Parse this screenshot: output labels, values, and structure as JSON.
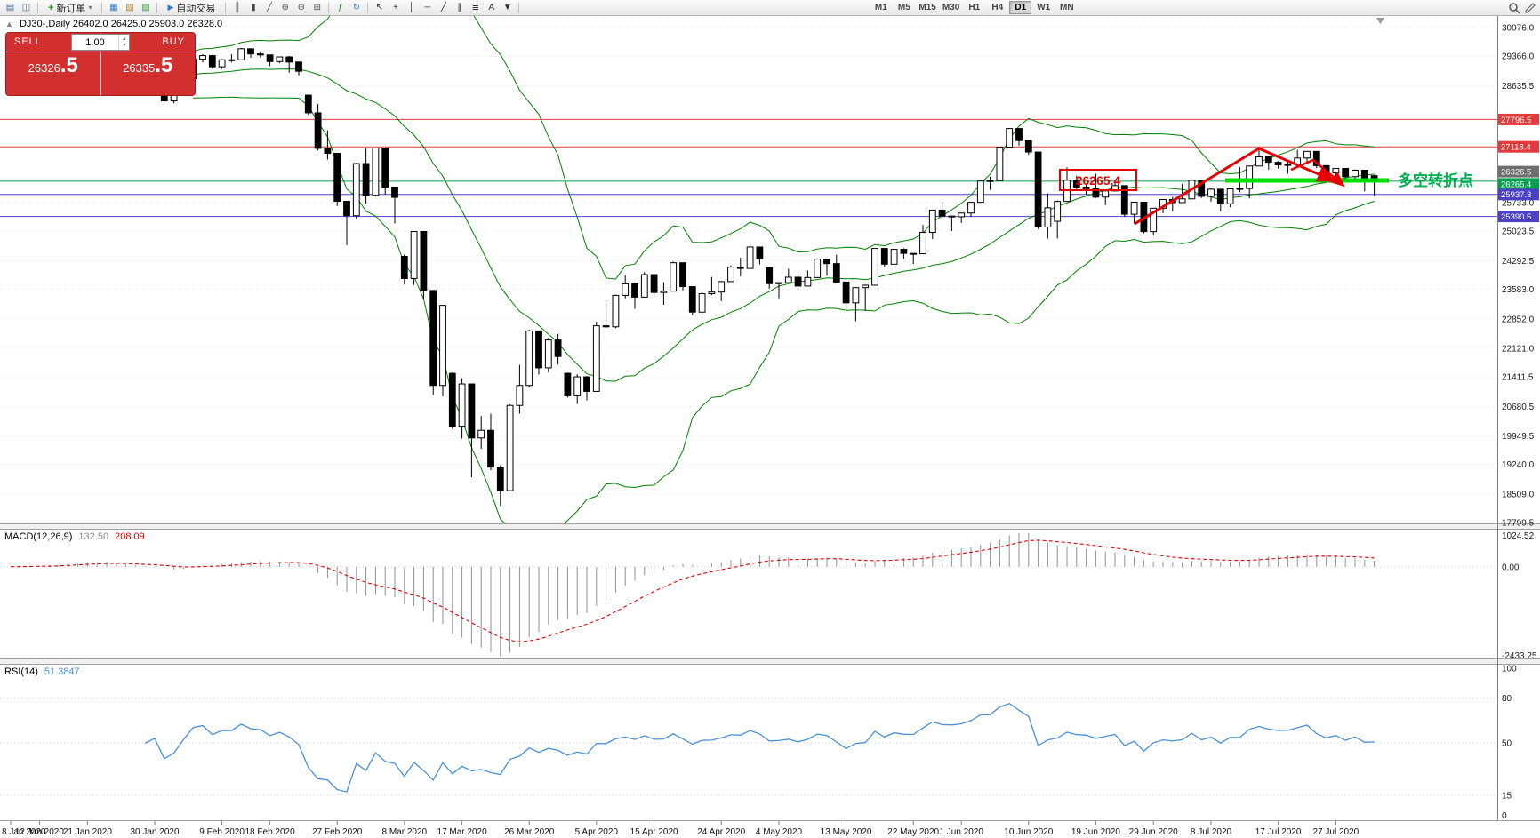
{
  "window": {
    "symbol_ohlc_line": "DJ30-,Daily  26402.0 26425.0 25903.0 26328.0"
  },
  "toolbar": {
    "new_order_label": "新订单",
    "auto_trading_label": "自动交易",
    "timeframes": [
      "M1",
      "M5",
      "M15",
      "M30",
      "H1",
      "H4",
      "D1",
      "W1",
      "MN"
    ],
    "active_timeframe": "D1",
    "icons": [
      {
        "name": "new-chart-icon",
        "glyph": "▤",
        "color": "#4a6f9c"
      },
      {
        "name": "chart-profiles-icon",
        "glyph": "◫",
        "color": "#4a6f9c"
      },
      {
        "name": "market-watch-icon",
        "glyph": "▦",
        "color": "#2e7dd1"
      },
      {
        "name": "data-window-icon",
        "glyph": "▧",
        "color": "#b28a2e"
      },
      {
        "name": "navigator-icon",
        "glyph": "▨",
        "color": "#3a9a3a"
      },
      {
        "name": "bars-chart-icon",
        "glyph": "║",
        "color": "#444444"
      },
      {
        "name": "candles-chart-icon",
        "glyph": "▮",
        "color": "#444444"
      },
      {
        "name": "line-chart-icon",
        "glyph": "╱",
        "color": "#444444"
      },
      {
        "name": "zoom-in-icon",
        "glyph": "⊕",
        "color": "#444444"
      },
      {
        "name": "zoom-out-icon",
        "glyph": "⊖",
        "color": "#444444"
      },
      {
        "name": "tile-windows-icon",
        "glyph": "⊞",
        "color": "#444444"
      },
      {
        "name": "add-indicator-icon",
        "glyph": "ƒ",
        "color": "#1a8a1a"
      },
      {
        "name": "period-menu-icon",
        "glyph": "↻",
        "color": "#2e7dd1"
      },
      {
        "name": "cursor-icon",
        "glyph": "↖",
        "color": "#333333"
      },
      {
        "name": "crosshair-icon",
        "glyph": "+",
        "color": "#333333"
      },
      {
        "name": "vertical-line-icon",
        "glyph": "│",
        "color": "#333333"
      },
      {
        "name": "horizontal-line-icon",
        "glyph": "─",
        "color": "#333333"
      },
      {
        "name": "trendline-icon",
        "glyph": "╱",
        "color": "#333333"
      },
      {
        "name": "equidistant-channel-icon",
        "glyph": "∥",
        "color": "#333333"
      },
      {
        "name": "fibonacci-icon",
        "glyph": "≣",
        "color": "#333333"
      },
      {
        "name": "text-label-icon",
        "glyph": "A",
        "color": "#333333"
      },
      {
        "name": "arrows-tool-icon",
        "glyph": "▼",
        "color": "#333333"
      }
    ]
  },
  "trade_panel": {
    "sell_label": "SELL",
    "buy_label": "BUY",
    "volume": "1.00",
    "sell_price_int": "26326",
    "sell_price_frac": ".5",
    "buy_price_int": "26335",
    "buy_price_frac": ".5",
    "panel_color": "#d22f2f"
  },
  "chart_data": {
    "type": "candlestick",
    "symbol": "DJ30-",
    "timeframe": "Daily",
    "ohlc_header": {
      "open": 26402.0,
      "high": 26425.0,
      "low": 25903.0,
      "close": 26328.0
    },
    "y_axis_labels": [
      "30076.0",
      "29366.0",
      "28635.5",
      "25733.0",
      "25023.5",
      "24292.5",
      "23583.0",
      "22852.0",
      "22121.0",
      "21411.5",
      "20680.5",
      "19949.5",
      "19240.0",
      "18509.0",
      "17799.5"
    ],
    "x_labels": [
      {
        "t": "8 Jan 2020",
        "i": 0
      },
      {
        "t": "12 Jan 2020",
        "i": 3
      },
      {
        "t": "21 Jan 2020",
        "i": 8
      },
      {
        "t": "30 Jan 2020",
        "i": 15
      },
      {
        "t": "9 Feb 2020",
        "i": 22
      },
      {
        "t": "18 Feb 2020",
        "i": 27
      },
      {
        "t": "27 Feb 2020",
        "i": 34
      },
      {
        "t": "8 Mar 2020",
        "i": 41
      },
      {
        "t": "17 Mar 2020",
        "i": 47
      },
      {
        "t": "26 Mar 2020",
        "i": 54
      },
      {
        "t": "5 Apr 2020",
        "i": 61
      },
      {
        "t": "15 Apr 2020",
        "i": 67
      },
      {
        "t": "24 Apr 2020",
        "i": 74
      },
      {
        "t": "4 May 2020",
        "i": 80
      },
      {
        "t": "13 May 2020",
        "i": 87
      },
      {
        "t": "22 May 2020",
        "i": 94
      },
      {
        "t": "1 Jun 2020",
        "i": 99
      },
      {
        "t": "10 Jun 2020",
        "i": 106
      },
      {
        "t": "19 Jun 2020",
        "i": 113
      },
      {
        "t": "29 Jun 2020",
        "i": 119
      },
      {
        "t": "8 Jul 2020",
        "i": 125
      },
      {
        "t": "17 Jul 2020",
        "i": 132
      },
      {
        "t": "27 Jul 2020",
        "i": 138
      }
    ],
    "hlines": [
      {
        "price": 27796.5,
        "label": "27796.5",
        "color": "#e23b3b"
      },
      {
        "price": 27118.4,
        "label": "27118.4",
        "color": "#e23b3b"
      },
      {
        "price": 26265.4,
        "label": "26265.4",
        "color": "#00a050"
      },
      {
        "price": 25937.3,
        "label": "25937.3",
        "color": "#4b41c9"
      },
      {
        "price": 25390.5,
        "label": "25390.5",
        "color": "#4b41c9"
      }
    ],
    "bid_label": {
      "price": 26326.5,
      "label": "26326.5",
      "color": "#6e6e6e"
    },
    "bollinger": {
      "period": 20,
      "deviation": 2,
      "color": "#008000"
    },
    "macd": {
      "name": "MACD(12,26,9)",
      "value_main": "132.50",
      "value_signal": "208.09",
      "axis_labels": [
        "1024.52",
        "0.00",
        "-2433.25"
      ],
      "histogram_color": "#909090",
      "signal_color": "#e00000"
    },
    "rsi": {
      "name": "RSI(14)",
      "value": "51.3847",
      "axis_labels": [
        "100",
        "80",
        "50",
        "15",
        "0"
      ],
      "levels": [
        80,
        50,
        15
      ],
      "color": "#4a90d9"
    },
    "annotations": {
      "price_box": {
        "text": "26265.4",
        "color": "#e60000"
      },
      "turning_point_text": {
        "text": "多空转折点",
        "color": "#00b050"
      },
      "highlight_line_color": "#00dd00",
      "trend_color": "#e60000"
    },
    "candles": [
      [
        28500,
        28765,
        28420,
        28745
      ],
      [
        28745,
        28990,
        28720,
        28957
      ],
      [
        28957,
        29010,
        28780,
        28824
      ],
      [
        28824,
        28920,
        28760,
        28907
      ],
      [
        28907,
        28985,
        28830,
        28939
      ],
      [
        28939,
        29085,
        28890,
        29030
      ],
      [
        29030,
        29300,
        29010,
        29297
      ],
      [
        29297,
        29389,
        29250,
        29348
      ],
      [
        29348,
        29360,
        29120,
        29196
      ],
      [
        29196,
        29320,
        29150,
        29186
      ],
      [
        29186,
        29230,
        28995,
        29160
      ],
      [
        29160,
        29290,
        28910,
        28990
      ],
      [
        28650,
        28700,
        28440,
        28536
      ],
      [
        28536,
        28750,
        28500,
        28723
      ],
      [
        28723,
        28820,
        28650,
        28734
      ],
      [
        28734,
        28870,
        28520,
        28859
      ],
      [
        28859,
        28870,
        28250,
        28256
      ],
      [
        28256,
        28480,
        28200,
        28400
      ],
      [
        28400,
        28850,
        28390,
        28808
      ],
      [
        28808,
        29310,
        28800,
        29291
      ],
      [
        29291,
        29409,
        29210,
        29380
      ],
      [
        29380,
        29390,
        29056,
        29103
      ],
      [
        29103,
        29300,
        29050,
        29277
      ],
      [
        29277,
        29415,
        29210,
        29276
      ],
      [
        29276,
        29568,
        29270,
        29551
      ],
      [
        29551,
        29560,
        29330,
        29423
      ],
      [
        29423,
        29480,
        29330,
        29398
      ],
      [
        29398,
        29400,
        29120,
        29232
      ],
      [
        29232,
        29360,
        29200,
        29348
      ],
      [
        29348,
        29370,
        28960,
        29220
      ],
      [
        29220,
        29230,
        28890,
        28992
      ],
      [
        28400,
        28410,
        27910,
        27961
      ],
      [
        27961,
        28180,
        27030,
        27081
      ],
      [
        27081,
        27530,
        26800,
        26958
      ],
      [
        26958,
        26960,
        25650,
        25767
      ],
      [
        25767,
        25780,
        24680,
        25409
      ],
      [
        25409,
        26720,
        25320,
        26703
      ],
      [
        26703,
        27080,
        25710,
        25917
      ],
      [
        25917,
        27100,
        25890,
        27090
      ],
      [
        27090,
        27100,
        25940,
        26121
      ],
      [
        26121,
        26130,
        25220,
        25865
      ],
      [
        24400,
        24450,
        23700,
        23851
      ],
      [
        23851,
        25030,
        23690,
        25018
      ],
      [
        25018,
        25030,
        23330,
        23553
      ],
      [
        23553,
        23570,
        20960,
        21200
      ],
      [
        21200,
        23200,
        20930,
        23185
      ],
      [
        21500,
        21520,
        20120,
        20188
      ],
      [
        20188,
        21380,
        19880,
        21237
      ],
      [
        21237,
        21240,
        18920,
        19898
      ],
      [
        19898,
        20440,
        19630,
        20087
      ],
      [
        20087,
        20500,
        19100,
        19173
      ],
      [
        19173,
        19220,
        18213,
        18591
      ],
      [
        18591,
        20730,
        18590,
        20704
      ],
      [
        20704,
        21710,
        20500,
        21200
      ],
      [
        21200,
        22580,
        21150,
        22552
      ],
      [
        22552,
        22560,
        21470,
        21636
      ],
      [
        21636,
        22380,
        21520,
        22327
      ],
      [
        22327,
        22480,
        21720,
        21917
      ],
      [
        21500,
        21520,
        20900,
        20943
      ],
      [
        20943,
        21480,
        20740,
        21413
      ],
      [
        21413,
        21430,
        20830,
        21052
      ],
      [
        21052,
        22780,
        21050,
        22679
      ],
      [
        22679,
        23310,
        22635,
        22653
      ],
      [
        22653,
        23450,
        22620,
        23433
      ],
      [
        23433,
        23930,
        23360,
        23719
      ],
      [
        23719,
        23730,
        23100,
        23390
      ],
      [
        23390,
        24010,
        23380,
        23949
      ],
      [
        23949,
        23960,
        23390,
        23504
      ],
      [
        23504,
        23760,
        23200,
        23537
      ],
      [
        23537,
        24270,
        23530,
        24242
      ],
      [
        24242,
        24250,
        23560,
        23650
      ],
      [
        23650,
        23660,
        22940,
        23018
      ],
      [
        23018,
        23520,
        22950,
        23475
      ],
      [
        23475,
        23890,
        23440,
        23515
      ],
      [
        23515,
        23790,
        23290,
        23775
      ],
      [
        23775,
        24180,
        23770,
        24133
      ],
      [
        24133,
        24370,
        23900,
        24101
      ],
      [
        24101,
        24765,
        24100,
        24633
      ],
      [
        24633,
        24640,
        24200,
        24345
      ],
      [
        24120,
        24130,
        23600,
        23723
      ],
      [
        23723,
        23760,
        23360,
        23749
      ],
      [
        23749,
        24090,
        23740,
        23883
      ],
      [
        23883,
        23980,
        23570,
        23664
      ],
      [
        23664,
        24050,
        23660,
        23875
      ],
      [
        23875,
        24350,
        23870,
        24331
      ],
      [
        24331,
        24340,
        23920,
        24221
      ],
      [
        24221,
        24440,
        23750,
        23764
      ],
      [
        23764,
        23770,
        23070,
        23247
      ],
      [
        23247,
        23630,
        22790,
        23625
      ],
      [
        23625,
        23700,
        23050,
        23685
      ],
      [
        23685,
        24600,
        23680,
        24597
      ],
      [
        24597,
        24600,
        24140,
        24206
      ],
      [
        24206,
        24580,
        24200,
        24575
      ],
      [
        24575,
        24600,
        24340,
        24474
      ],
      [
        24474,
        24480,
        24210,
        24465
      ],
      [
        24465,
        25180,
        24460,
        24995
      ],
      [
        24995,
        25560,
        24830,
        25548
      ],
      [
        25548,
        25760,
        25330,
        25400
      ],
      [
        25400,
        25410,
        25030,
        25383
      ],
      [
        25383,
        25480,
        25230,
        25475
      ],
      [
        25475,
        25745,
        25380,
        25742
      ],
      [
        25742,
        26290,
        25740,
        26269
      ],
      [
        26269,
        26380,
        26050,
        26281
      ],
      [
        26281,
        27110,
        26280,
        27110
      ],
      [
        27110,
        27580,
        27090,
        27572
      ],
      [
        27572,
        27580,
        27150,
        27272
      ],
      [
        27272,
        27280,
        26920,
        26989
      ],
      [
        26989,
        26990,
        25080,
        25128
      ],
      [
        25128,
        25965,
        24840,
        25605
      ],
      [
        25270,
        25790,
        24843,
        25763
      ],
      [
        25763,
        26610,
        25760,
        26289
      ],
      [
        26289,
        26400,
        26070,
        26119
      ],
      [
        26119,
        26210,
        25920,
        26080
      ],
      [
        26080,
        26450,
        25850,
        25871
      ],
      [
        25871,
        26060,
        25670,
        26024
      ],
      [
        26024,
        26300,
        26010,
        26156
      ],
      [
        26156,
        26160,
        25380,
        25445
      ],
      [
        25445,
        25750,
        25210,
        25745
      ],
      [
        25745,
        25750,
        24970,
        25015
      ],
      [
        25015,
        25600,
        24920,
        25595
      ],
      [
        25595,
        25820,
        25470,
        25812
      ],
      [
        25812,
        25880,
        25520,
        25734
      ],
      [
        25734,
        26200,
        25730,
        25827
      ],
      [
        25827,
        26300,
        25820,
        26287
      ],
      [
        26287,
        26290,
        25850,
        25890
      ],
      [
        25890,
        26090,
        25760,
        26067
      ],
      [
        26067,
        26070,
        25520,
        25706
      ],
      [
        25706,
        26080,
        25620,
        26075
      ],
      [
        26075,
        26620,
        25990,
        26085
      ],
      [
        26085,
        26650,
        25840,
        26642
      ],
      [
        26642,
        27070,
        26640,
        26870
      ],
      [
        26870,
        26880,
        26550,
        26734
      ],
      [
        26734,
        26770,
        26580,
        26671
      ],
      [
        26671,
        26760,
        26450,
        26680
      ],
      [
        26680,
        27040,
        26670,
        26840
      ],
      [
        26840,
        27010,
        26700,
        27005
      ],
      [
        27005,
        27010,
        26590,
        26652
      ],
      [
        26652,
        26660,
        26310,
        26469
      ],
      [
        26469,
        26590,
        26300,
        26584
      ],
      [
        26584,
        26590,
        26230,
        26379
      ],
      [
        26379,
        26560,
        26280,
        26539
      ],
      [
        26539,
        26540,
        26013,
        26313
      ],
      [
        26402,
        26425,
        25903,
        26328
      ]
    ]
  }
}
